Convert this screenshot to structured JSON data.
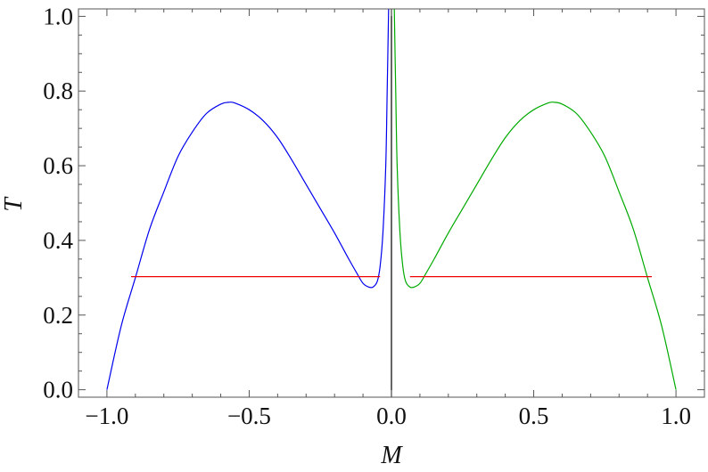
{
  "chart_data": {
    "type": "line",
    "xlabel": "M",
    "ylabel": "T",
    "xlim": [
      -1.1,
      1.1
    ],
    "ylim": [
      -0.02,
      1.02
    ],
    "x_ticks": [
      -1.0,
      -0.5,
      0.0,
      0.5,
      1.0
    ],
    "x_tick_labels": [
      "−1.0",
      "−0.5",
      "0.0",
      "0.5",
      "1.0"
    ],
    "y_ticks": [
      0.0,
      0.2,
      0.4,
      0.6,
      0.8,
      1.0
    ],
    "y_tick_labels": [
      "0.0",
      "0.2",
      "0.4",
      "0.6",
      "0.8",
      "1.0"
    ],
    "grid": false,
    "frame": true,
    "series": [
      {
        "color": "#0000ee",
        "x": [
          -1.0,
          -0.95,
          -0.9,
          -0.85,
          -0.8,
          -0.75,
          -0.7,
          -0.65,
          -0.6,
          -0.57,
          -0.55,
          -0.5,
          -0.45,
          -0.4,
          -0.35,
          -0.3,
          -0.25,
          -0.2,
          -0.15,
          -0.12,
          -0.1,
          -0.08,
          -0.065,
          -0.05,
          -0.04,
          -0.03,
          -0.02,
          -0.015,
          -0.01
        ],
        "y": [
          0.0,
          0.17,
          0.3,
          0.43,
          0.53,
          0.625,
          0.69,
          0.74,
          0.765,
          0.77,
          0.768,
          0.75,
          0.72,
          0.675,
          0.615,
          0.55,
          0.485,
          0.42,
          0.35,
          0.31,
          0.285,
          0.275,
          0.275,
          0.29,
          0.33,
          0.42,
          0.6,
          0.8,
          1.02
        ]
      },
      {
        "color": "#00aa00",
        "x": [
          0.01,
          0.015,
          0.02,
          0.03,
          0.04,
          0.05,
          0.065,
          0.08,
          0.1,
          0.12,
          0.15,
          0.2,
          0.25,
          0.3,
          0.35,
          0.4,
          0.45,
          0.5,
          0.55,
          0.57,
          0.6,
          0.65,
          0.7,
          0.75,
          0.8,
          0.85,
          0.9,
          0.95,
          1.0
        ],
        "y": [
          1.02,
          0.8,
          0.6,
          0.42,
          0.33,
          0.29,
          0.275,
          0.275,
          0.285,
          0.31,
          0.35,
          0.42,
          0.485,
          0.55,
          0.615,
          0.675,
          0.72,
          0.75,
          0.768,
          0.77,
          0.765,
          0.74,
          0.69,
          0.625,
          0.53,
          0.43,
          0.3,
          0.17,
          0.0
        ]
      },
      {
        "color": "#ee0000",
        "x": [
          -0.915,
          -0.04
        ],
        "y": [
          0.303,
          0.303
        ]
      },
      {
        "color": "#ee0000",
        "x": [
          0.065,
          0.915
        ],
        "y": [
          0.303,
          0.303
        ]
      },
      {
        "color": "#000000",
        "x": [
          0.0,
          0.0
        ],
        "y": [
          -0.02,
          1.02
        ]
      }
    ]
  }
}
